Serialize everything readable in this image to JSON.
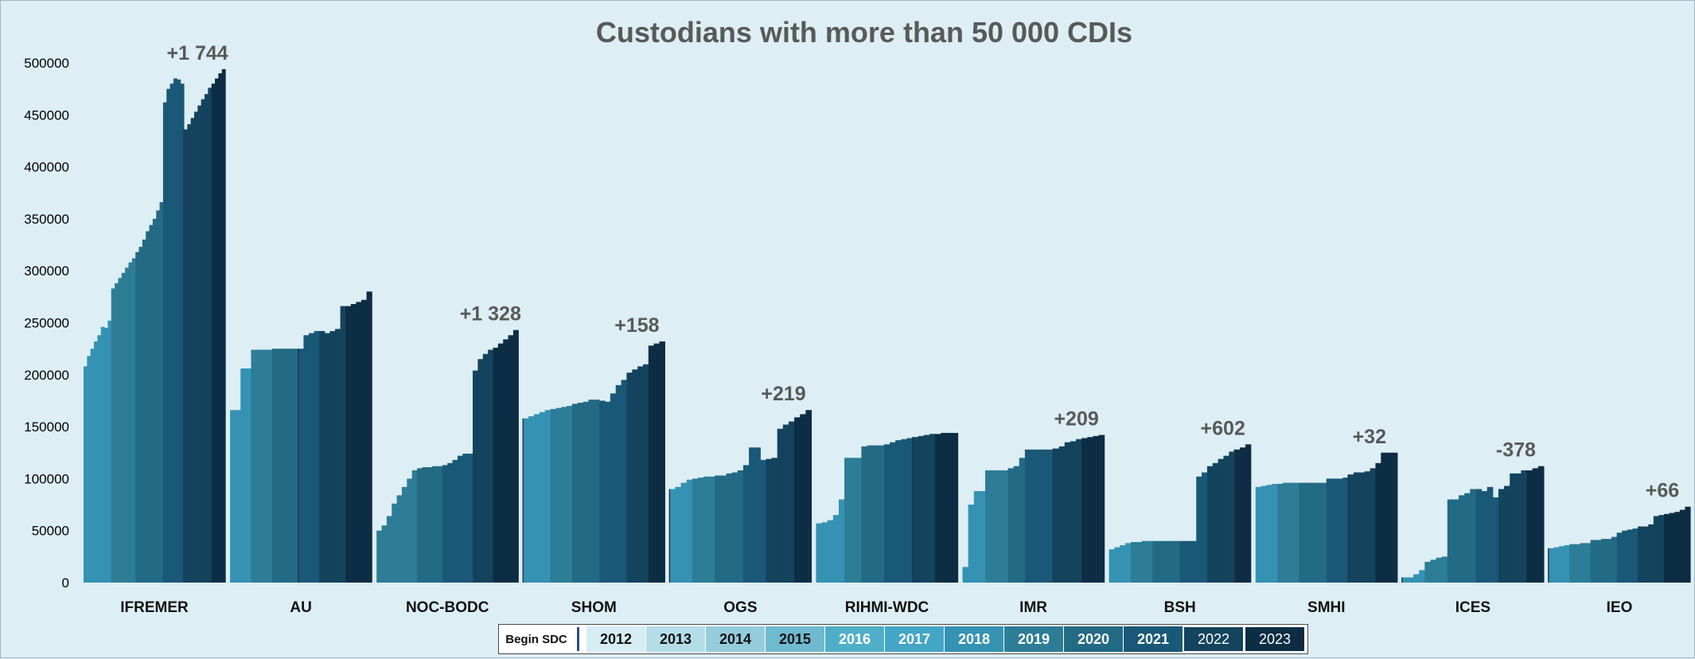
{
  "chart_data": {
    "type": "bar",
    "title": "Custodians with more than 50 000 CDIs",
    "xlabel": "",
    "ylabel": "",
    "ylim": [
      0,
      500000
    ],
    "yticks": [
      "0",
      "50000",
      "100000",
      "150000",
      "200000",
      "250000",
      "300000",
      "350000",
      "400000",
      "450000",
      "500000"
    ],
    "legend_placement": "bottom",
    "legend": {
      "begin_label": "Begin SDC",
      "years": [
        "2012",
        "2013",
        "2014",
        "2015",
        "2016",
        "2017",
        "2018",
        "2019",
        "2020",
        "2021",
        "2022",
        "2023"
      ],
      "colors": [
        "#d6edf3",
        "#b5dde8",
        "#94ccdc",
        "#70bad0",
        "#50afc8",
        "#43a6c5",
        "#3592b3",
        "#2d7d97",
        "#236a84",
        "#1a5878",
        "#14435e",
        "#0d2d44"
      ]
    },
    "categories": [
      {
        "name": "IFREMER",
        "annotation": "+1 744",
        "begin_sdc_index": 4,
        "values": [
          [
            208000,
            218000,
            225000,
            232000,
            238000,
            246000,
            245000,
            252000
          ],
          [
            283000,
            288000,
            293000,
            298000,
            303000,
            308000,
            312000
          ],
          [
            318000,
            323000,
            330000,
            338000,
            344000,
            350000,
            358000,
            366000
          ],
          [
            462000,
            475000,
            480000,
            485000,
            484000,
            480000
          ],
          [
            436000,
            441000,
            447000,
            453000,
            459000,
            465000,
            470000,
            476000
          ],
          [
            480000,
            485000,
            490000,
            494000
          ]
        ]
      },
      {
        "name": "AU",
        "annotation": "",
        "begin_sdc_index": 3,
        "values": [
          [
            166000,
            166000,
            206000,
            206000
          ],
          [
            224000,
            224000,
            224000,
            224000
          ],
          [
            225000,
            225000,
            225000,
            225000,
            225000
          ],
          [
            225000,
            238000,
            240000,
            242000
          ],
          [
            242000,
            240000,
            242000,
            244000,
            266000
          ],
          [
            266000,
            268000,
            270000,
            272000,
            280000
          ]
        ]
      },
      {
        "name": "NOC-BODC",
        "annotation": "+1 328",
        "begin_sdc_index": 5,
        "values": [
          [
            50000,
            55000,
            64000,
            76000,
            84000,
            92000,
            100000,
            108000
          ],
          [
            110000,
            111000,
            111000,
            112000,
            112000
          ],
          [
            113000,
            115000,
            118000,
            122000,
            124000,
            124000
          ],
          [
            204000,
            215000,
            220000,
            224000
          ],
          [
            226000,
            230000,
            234000,
            238000,
            243000
          ]
        ]
      },
      {
        "name": "SHOM",
        "annotation": "+158",
        "begin_sdc_index": 0,
        "values": [
          [
            158000,
            160000,
            162000,
            164000,
            166000
          ],
          [
            167000,
            168000,
            169000,
            170000
          ],
          [
            172000,
            173000,
            174000,
            176000,
            176000
          ],
          [
            175000,
            174000,
            182000,
            190000,
            195000
          ],
          [
            202000,
            205000,
            208000,
            210000
          ],
          [
            228000,
            230000,
            232000
          ]
        ]
      },
      {
        "name": "OGS",
        "annotation": "+219",
        "begin_sdc_index": 0,
        "values": [
          [
            90000,
            92000,
            96000,
            99000
          ],
          [
            100000,
            101000,
            102000,
            102000
          ],
          [
            103000,
            103000,
            105000,
            106000,
            108000
          ],
          [
            113000,
            130000,
            130000,
            118000
          ],
          [
            119000,
            120000,
            148000,
            152000,
            155000
          ],
          [
            159000,
            162000,
            166000
          ]
        ]
      },
      {
        "name": "RIHMI-WDC",
        "annotation": "",
        "begin_sdc_index": 4,
        "values": [
          [
            57000,
            58000,
            60000,
            65000,
            80000
          ],
          [
            120000,
            120000,
            120000
          ],
          [
            131000,
            132000,
            132000,
            132000
          ],
          [
            133000,
            135000,
            137000,
            138000,
            139000
          ],
          [
            140000,
            141000,
            142000,
            143000
          ],
          [
            143000,
            144000,
            144000,
            144000
          ]
        ]
      },
      {
        "name": "IMR",
        "annotation": "+209",
        "begin_sdc_index": 4,
        "values": [
          [
            15000,
            75000,
            88000,
            88000
          ],
          [
            108000,
            108000,
            108000,
            108000
          ],
          [
            110000,
            112000,
            120000
          ],
          [
            128000,
            128000,
            128000,
            128000,
            128000
          ],
          [
            129000,
            131000,
            135000,
            136000,
            138000
          ],
          [
            139000,
            140000,
            141000,
            142000
          ]
        ]
      },
      {
        "name": "BSH",
        "annotation": "+602",
        "begin_sdc_index": 5,
        "values": [
          [
            32000,
            34000,
            36000,
            38000
          ],
          [
            39000,
            39000,
            40000,
            40000
          ],
          [
            40000,
            40000,
            40000,
            40000,
            40000
          ],
          [
            40000,
            40000,
            40000,
            102000,
            106000
          ],
          [
            112000,
            115000,
            119000,
            122000,
            126000
          ],
          [
            128000,
            130000,
            133000
          ]
        ]
      },
      {
        "name": "SMHI",
        "annotation": "+32",
        "begin_sdc_index": 4,
        "values": [
          [
            92000,
            93000,
            94000,
            95000
          ],
          [
            95000,
            96000,
            96000,
            96000
          ],
          [
            96000,
            96000,
            96000,
            96000,
            96000
          ],
          [
            100000,
            100000,
            100000,
            101000
          ],
          [
            104000,
            106000,
            106000,
            107000,
            110000
          ],
          [
            115000,
            125000,
            125000,
            125000
          ]
        ]
      },
      {
        "name": "ICES",
        "annotation": "-378",
        "begin_sdc_index": 0,
        "values": [
          [
            5000,
            5000,
            8000,
            12000
          ],
          [
            20000,
            22000,
            24000,
            25000
          ],
          [
            80000,
            80000,
            84000,
            86000,
            90000
          ],
          [
            90000,
            88000,
            92000,
            82000
          ],
          [
            90000,
            93000,
            105000,
            105000,
            108000
          ],
          [
            108000,
            110000,
            112000
          ]
        ]
      },
      {
        "name": "IEO",
        "annotation": "+66",
        "begin_sdc_index": 0,
        "values": [
          [
            33000,
            34000,
            35000,
            36000
          ],
          [
            37000,
            37000,
            38000,
            38000
          ],
          [
            41000,
            41000,
            42000,
            42000,
            44000
          ],
          [
            48000,
            50000,
            51000,
            52000
          ],
          [
            54000,
            54000,
            56000,
            64000,
            65000
          ],
          [
            66000,
            67000,
            68000,
            70000,
            73000
          ]
        ]
      }
    ]
  }
}
